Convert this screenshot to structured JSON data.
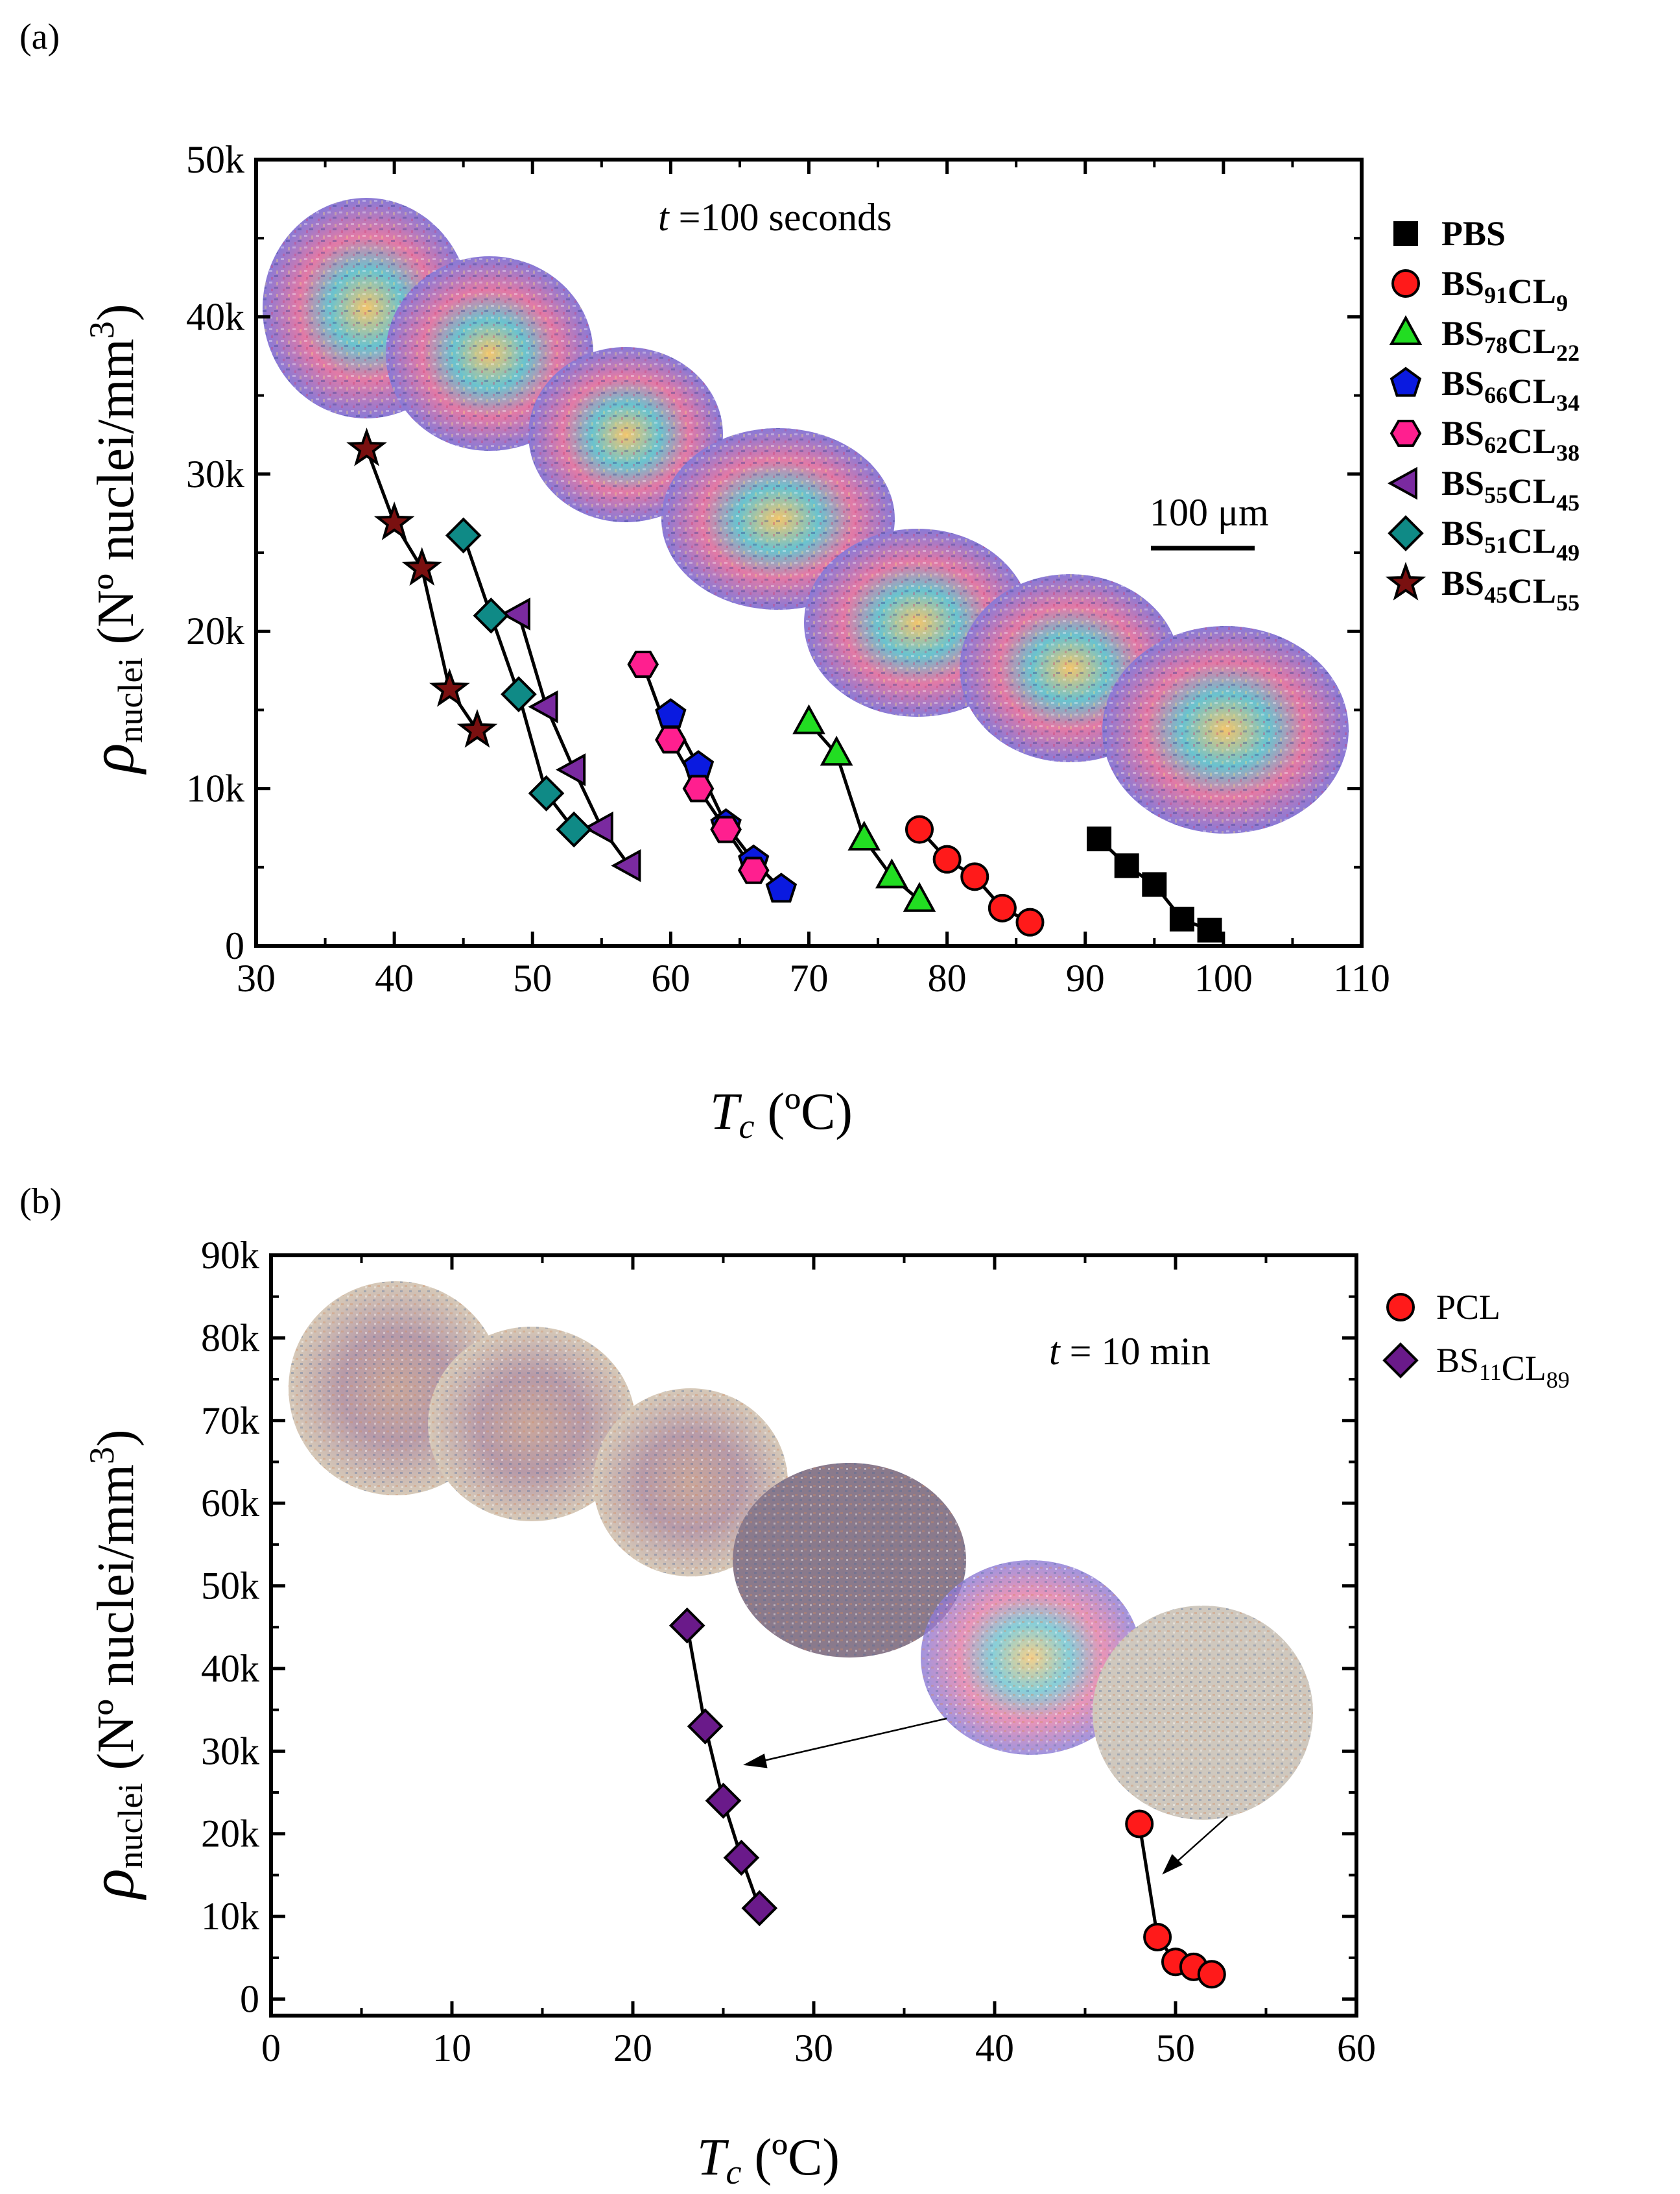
{
  "panel_labels": [
    "(a)",
    "(b)"
  ],
  "image_annotations": {
    "a_scale_bar": "100 μm"
  },
  "chart_data": [
    {
      "panel": "a",
      "type": "scatter",
      "mode": "markers+lines",
      "annotation": {
        "t_var": "t",
        "text": " =100 seconds"
      },
      "xlabel": {
        "var": "T",
        "sub": "c",
        "unit": " (ºC)"
      },
      "ylabel": {
        "var": "ρ",
        "sub": "nuclei",
        "unit": " (Nº nuclei/mm",
        "sup": "3",
        "close": ")"
      },
      "xlim": [
        30,
        110
      ],
      "ylim": [
        0,
        50000
      ],
      "xticks": [
        30,
        40,
        50,
        60,
        70,
        80,
        90,
        100,
        110
      ],
      "yticks": [
        0,
        10000,
        20000,
        30000,
        40000,
        50000
      ],
      "ytick_labels": [
        "0",
        "10k",
        "20k",
        "30k",
        "40k",
        "50k"
      ],
      "legend_position": "right-outside",
      "series": [
        {
          "name": "PBS",
          "name_parts": [
            [
              "PBS",
              ""
            ]
          ],
          "marker": "square",
          "color": "#000000",
          "x": [
            91,
            93,
            95,
            97,
            99
          ],
          "y": [
            6800,
            5100,
            3900,
            1700,
            1000
          ]
        },
        {
          "name": "BS91CL9",
          "name_parts": [
            [
              "BS",
              "91"
            ],
            [
              "CL",
              "9"
            ]
          ],
          "marker": "circle",
          "color": "#ff1a1a",
          "x": [
            78,
            80,
            82,
            84,
            86
          ],
          "y": [
            7400,
            5500,
            4400,
            2400,
            1500
          ]
        },
        {
          "name": "BS78CL22",
          "name_parts": [
            [
              "BS",
              "78"
            ],
            [
              "CL",
              "22"
            ]
          ],
          "marker": "triangle-up",
          "color": "#22dd22",
          "x": [
            70,
            72,
            74,
            76,
            78
          ],
          "y": [
            14200,
            12200,
            6800,
            4400,
            2900
          ]
        },
        {
          "name": "BS66CL34",
          "name_parts": [
            [
              "BS",
              "66"
            ],
            [
              "CL",
              "34"
            ]
          ],
          "marker": "pentagon",
          "color": "#0a1ae0",
          "x": [
            60,
            62,
            64,
            66,
            68
          ],
          "y": [
            14700,
            11400,
            7700,
            5400,
            3600
          ]
        },
        {
          "name": "BS62CL38",
          "name_parts": [
            [
              "BS",
              "62"
            ],
            [
              "CL",
              "38"
            ]
          ],
          "marker": "hexagon",
          "color": "#ff1f8f",
          "x": [
            58,
            60,
            62,
            64,
            66
          ],
          "y": [
            17900,
            13100,
            10000,
            7400,
            4800
          ]
        },
        {
          "name": "BS55CL45",
          "name_parts": [
            [
              "BS",
              "55"
            ],
            [
              "CL",
              "45"
            ]
          ],
          "marker": "triangle-left",
          "color": "#7a2aa0",
          "x": [
            49,
            51,
            53,
            55,
            57
          ],
          "y": [
            21100,
            15200,
            11200,
            7500,
            5100
          ]
        },
        {
          "name": "BS51CL49",
          "name_parts": [
            [
              "BS",
              "51"
            ],
            [
              "CL",
              "49"
            ]
          ],
          "marker": "diamond",
          "color": "#0f8a86",
          "x": [
            45,
            47,
            49,
            51,
            53
          ],
          "y": [
            26100,
            21000,
            16000,
            9700,
            7400
          ]
        },
        {
          "name": "BS45CL55",
          "name_parts": [
            [
              "BS",
              "45"
            ],
            [
              "CL",
              "55"
            ]
          ],
          "marker": "star",
          "color": "#7a1010",
          "x": [
            38,
            40,
            42,
            44,
            46
          ],
          "y": [
            31600,
            26900,
            24000,
            16300,
            13700
          ]
        }
      ]
    },
    {
      "panel": "b",
      "type": "scatter",
      "mode": "markers+lines",
      "annotation": {
        "t_var": "t",
        "text": " = 10 min"
      },
      "xlabel": {
        "var": "T",
        "sub": "c",
        "unit": " (ºC)"
      },
      "ylabel": {
        "var": "ρ",
        "sub": "nuclei",
        "unit": " (Nº nuclei/mm",
        "sup": "3",
        "close": ")"
      },
      "xlim": [
        0,
        60
      ],
      "ylim": [
        -2000,
        90000
      ],
      "xticks": [
        0,
        10,
        20,
        30,
        40,
        50,
        60
      ],
      "yticks": [
        0,
        10000,
        20000,
        30000,
        40000,
        50000,
        60000,
        70000,
        80000,
        90000
      ],
      "ytick_labels": [
        "0",
        "10k",
        "20k",
        "30k",
        "40k",
        "50k",
        "60k",
        "70k",
        "80k",
        "90k"
      ],
      "legend_position": "right-outside",
      "series": [
        {
          "name": "PCL",
          "name_parts": [
            [
              "PCL",
              ""
            ]
          ],
          "marker": "circle",
          "color": "#ff1a1a",
          "x": [
            48,
            49,
            50,
            51,
            52
          ],
          "y": [
            21200,
            7500,
            4500,
            3900,
            3000
          ]
        },
        {
          "name": "BS11CL89",
          "name_parts": [
            [
              "BS",
              "11"
            ],
            [
              "CL",
              "89"
            ]
          ],
          "marker": "diamond",
          "color": "#6a1a8a",
          "x": [
            23,
            24,
            25,
            26,
            27
          ],
          "y": [
            45200,
            33000,
            24000,
            17100,
            11000
          ]
        }
      ]
    }
  ]
}
